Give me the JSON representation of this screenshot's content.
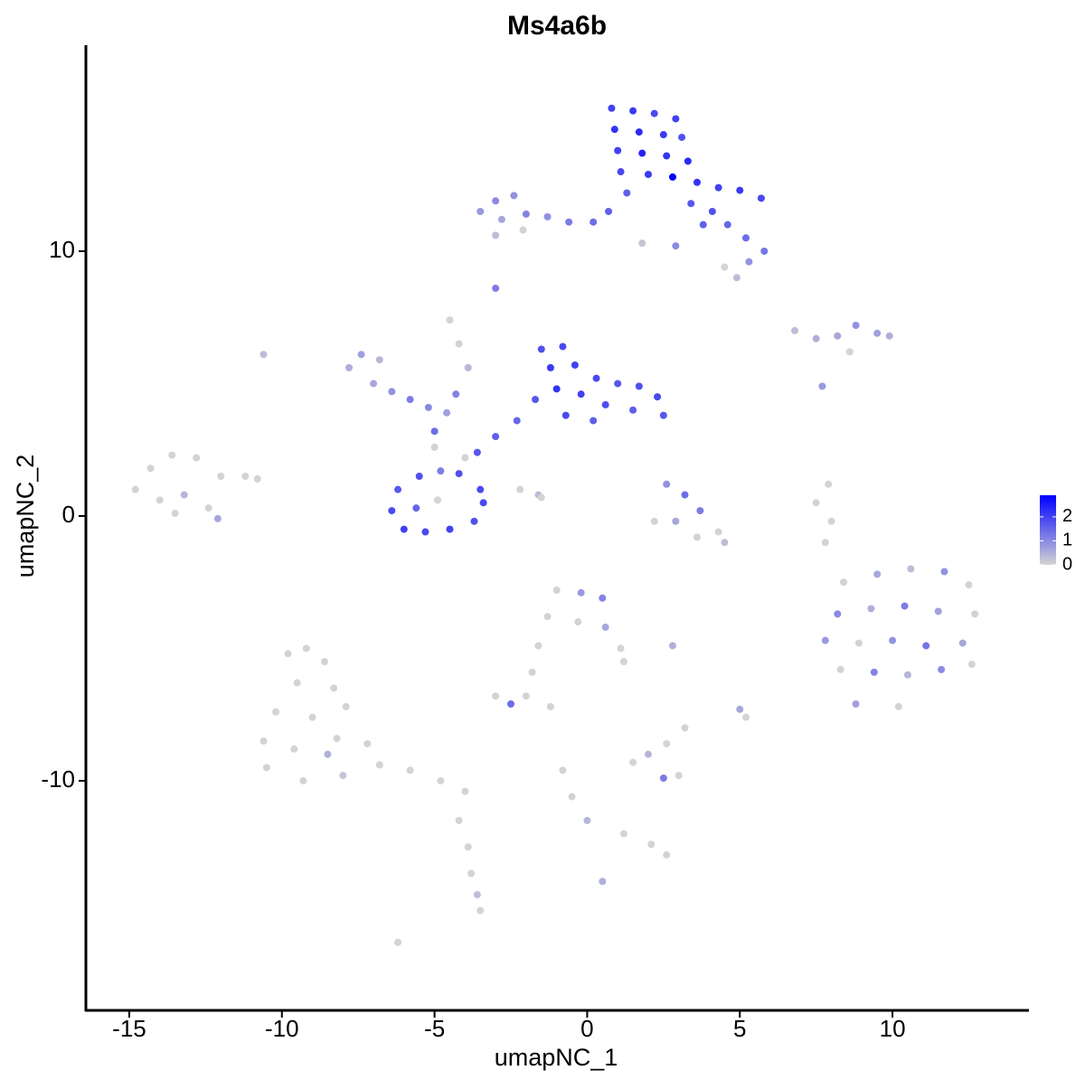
{
  "chart_data": {
    "type": "scatter",
    "title": "Ms4a6b",
    "x_label": "umapNC_1",
    "y_label": "umapNC_2",
    "xlim": [
      -16.42,
      14.47
    ],
    "ylim": [
      -18.67,
      17.78
    ],
    "xticks": [
      -15,
      -10,
      -5,
      0,
      5,
      10
    ],
    "yticks": [
      -10,
      0,
      10
    ],
    "low_color": "#d3d3d3",
    "high_color": "#0000ff",
    "colorlim": [
      0,
      2.9
    ],
    "colorticks": [
      0,
      1,
      2
    ],
    "x": [
      0.8,
      1.5,
      2.2,
      2.9,
      0.9,
      1.7,
      2.5,
      3.1,
      1.0,
      1.8,
      2.6,
      3.3,
      1.1,
      2.0,
      2.8,
      3.6,
      4.3,
      5.0,
      5.7,
      1.3,
      3.4,
      4.1,
      4.6,
      5.2,
      5.8,
      5.3,
      4.5,
      4.9,
      2.9,
      3.8,
      -3.5,
      -3.0,
      -2.4,
      -2.8,
      -2.0,
      -1.3,
      -0.6,
      0.2,
      0.7,
      -3.0,
      -2.1,
      1.8,
      -3.0,
      -10.6,
      -1.5,
      -0.8,
      -1.2,
      -0.4,
      0.3,
      1.0,
      1.7,
      2.3,
      2.5,
      1.5,
      0.6,
      -0.2,
      -1.0,
      -1.7,
      -0.7,
      0.2,
      -2.3,
      -3.0,
      -3.6,
      -4.2,
      -3.5,
      -4.8,
      -5.5,
      -6.2,
      -6.4,
      -6.0,
      -5.3,
      -4.5,
      -3.7,
      -3.4,
      -5.6,
      -4.9,
      -4.0,
      -5.0,
      -7.8,
      -7.4,
      -6.8,
      -7.0,
      -6.4,
      -5.8,
      -5.2,
      -4.6,
      -5.0,
      -4.3,
      -4.5,
      -4.2,
      -3.9,
      -2.2,
      -1.6,
      -1.5,
      -14.8,
      -14.3,
      -13.6,
      -12.8,
      -12.0,
      -11.2,
      -10.8,
      -14.0,
      -13.2,
      -12.4,
      -13.5,
      -12.1,
      -9.8,
      -9.2,
      -8.6,
      -9.5,
      -8.3,
      -10.2,
      -9.0,
      -7.9,
      -10.6,
      -9.6,
      -8.2,
      -7.2,
      -10.5,
      -9.3,
      -8.0,
      -6.8,
      -5.8,
      -4.8,
      -4.0,
      -8.5,
      -4.2,
      -3.9,
      -3.8,
      -3.6,
      -3.5,
      -6.2,
      8.4,
      9.5,
      10.6,
      11.7,
      12.5,
      8.2,
      9.3,
      10.4,
      11.5,
      12.7,
      7.8,
      8.9,
      10.0,
      11.1,
      12.3,
      8.3,
      9.4,
      10.5,
      11.6,
      12.6,
      8.8,
      10.2,
      -1.0,
      -0.2,
      0.5,
      -1.3,
      -0.3,
      0.6,
      1.1,
      1.2,
      -1.6,
      -1.8,
      -2.0,
      -2.5,
      -3.0,
      -1.2,
      2.8,
      2.6,
      3.2,
      3.7,
      2.9,
      3.6,
      4.3,
      4.5,
      2.2,
      6.8,
      7.5,
      8.2,
      8.8,
      9.5,
      9.9,
      8.6,
      7.7,
      7.9,
      7.5,
      8.0,
      7.8,
      -0.8,
      -0.5,
      0.0,
      1.2,
      2.1,
      2.6,
      5.0,
      5.2,
      0.5,
      1.5,
      2.0,
      2.6,
      3.0,
      2.5,
      3.2
    ],
    "y": [
      15.4,
      15.3,
      15.2,
      15.0,
      14.6,
      14.5,
      14.4,
      14.3,
      13.8,
      13.7,
      13.6,
      13.4,
      13.0,
      12.9,
      12.8,
      12.6,
      12.4,
      12.3,
      12.0,
      12.2,
      11.8,
      11.5,
      11.0,
      10.5,
      10.0,
      9.6,
      9.4,
      9.0,
      10.2,
      11.0,
      11.5,
      11.9,
      12.1,
      11.2,
      11.4,
      11.3,
      11.1,
      11.1,
      11.5,
      10.6,
      10.8,
      10.3,
      8.6,
      6.1,
      6.3,
      6.4,
      5.6,
      5.7,
      5.2,
      5.0,
      4.9,
      4.5,
      3.8,
      4.0,
      4.2,
      4.6,
      4.8,
      4.4,
      3.8,
      3.6,
      3.6,
      3.0,
      2.4,
      1.6,
      1.0,
      1.7,
      1.5,
      1.0,
      0.2,
      -0.5,
      -0.6,
      -0.5,
      -0.2,
      0.5,
      0.3,
      0.6,
      2.2,
      2.6,
      5.6,
      6.1,
      5.9,
      5.0,
      4.7,
      4.4,
      4.1,
      3.9,
      3.2,
      4.6,
      7.4,
      6.5,
      5.6,
      1.0,
      0.8,
      0.7,
      1.0,
      1.8,
      2.3,
      2.2,
      1.5,
      1.5,
      1.4,
      0.6,
      0.8,
      0.3,
      0.1,
      -0.1,
      -5.2,
      -5.0,
      -5.5,
      -6.3,
      -6.5,
      -7.4,
      -7.6,
      -7.2,
      -8.5,
      -8.8,
      -8.4,
      -8.6,
      -9.5,
      -10.0,
      -9.8,
      -9.4,
      -9.6,
      -10.0,
      -10.4,
      -9.0,
      -11.5,
      -12.5,
      -13.5,
      -14.3,
      -14.9,
      -16.1,
      -2.5,
      -2.2,
      -2.0,
      -2.1,
      -2.6,
      -3.7,
      -3.5,
      -3.4,
      -3.6,
      -3.7,
      -4.7,
      -4.8,
      -4.7,
      -4.9,
      -4.8,
      -5.8,
      -5.9,
      -6.0,
      -5.8,
      -5.6,
      -7.1,
      -7.2,
      -2.8,
      -2.9,
      -3.1,
      -3.8,
      -4.0,
      -4.2,
      -5.0,
      -5.5,
      -4.9,
      -5.9,
      -6.8,
      -7.1,
      -6.8,
      -7.2,
      -4.9,
      1.2,
      0.8,
      0.2,
      -0.2,
      -0.8,
      -0.6,
      -1.0,
      -0.2,
      7.0,
      6.7,
      6.8,
      7.2,
      6.9,
      6.8,
      6.2,
      4.9,
      1.2,
      0.5,
      -0.2,
      -1.0,
      -9.6,
      -10.6,
      -11.5,
      -12.0,
      -12.4,
      -12.8,
      -7.3,
      -7.6,
      -13.8,
      -9.3,
      -9.0,
      -8.6,
      -9.8,
      -9.9,
      -8.0
    ],
    "expression": [
      2.0,
      2.1,
      1.9,
      2.0,
      2.2,
      2.3,
      2.1,
      1.8,
      2.0,
      2.4,
      2.2,
      2.3,
      1.9,
      2.1,
      2.9,
      2.2,
      2.0,
      2.1,
      1.9,
      1.6,
      1.7,
      1.8,
      1.5,
      1.4,
      1.3,
      0.9,
      0,
      0.3,
      1.0,
      1.6,
      0.8,
      1.0,
      0.9,
      0.6,
      1.1,
      0.9,
      1.2,
      1.4,
      1.6,
      0.3,
      0,
      0.2,
      1.2,
      0.3,
      1.8,
      1.9,
      2.1,
      2.0,
      1.9,
      1.7,
      1.8,
      1.9,
      1.7,
      1.6,
      1.8,
      2.0,
      2.2,
      1.7,
      1.9,
      1.6,
      1.5,
      1.6,
      1.7,
      1.8,
      1.9,
      1.2,
      1.8,
      1.7,
      1.9,
      2.0,
      1.9,
      2.0,
      1.8,
      1.9,
      1.5,
      0,
      0,
      0,
      0.5,
      0.7,
      0.4,
      0.6,
      0.9,
      1.2,
      1.0,
      0.7,
      1.4,
      1.1,
      0,
      0,
      0.4,
      0,
      0.3,
      0,
      0,
      0,
      0,
      0,
      0,
      0,
      0,
      0,
      0.4,
      0,
      0,
      0.6,
      0,
      0,
      0,
      0,
      0,
      0,
      0,
      0,
      0,
      0,
      0,
      0,
      0,
      0,
      0.2,
      0,
      0,
      0,
      0,
      0.5,
      0,
      0,
      0,
      0.3,
      0,
      0,
      0,
      0.6,
      0.3,
      0.9,
      0,
      1.0,
      0.5,
      1.2,
      0.7,
      0,
      0.8,
      0,
      0.9,
      1.3,
      0.6,
      0,
      1.1,
      0.4,
      1.0,
      0,
      0.7,
      0,
      0,
      0.8,
      1.1,
      0,
      0,
      0.6,
      0,
      0,
      0,
      0,
      0,
      1.4,
      0,
      0,
      0.5,
      0.9,
      1.4,
      1.2,
      0.6,
      0,
      0,
      0.3,
      0,
      0.3,
      0.5,
      0.6,
      0.9,
      0.7,
      0.5,
      0,
      0.8,
      0,
      0,
      0,
      0,
      0,
      0,
      0.4,
      0,
      0,
      0,
      0.6,
      0,
      0.5,
      0,
      0.4,
      0,
      0,
      1.2,
      0
    ]
  }
}
